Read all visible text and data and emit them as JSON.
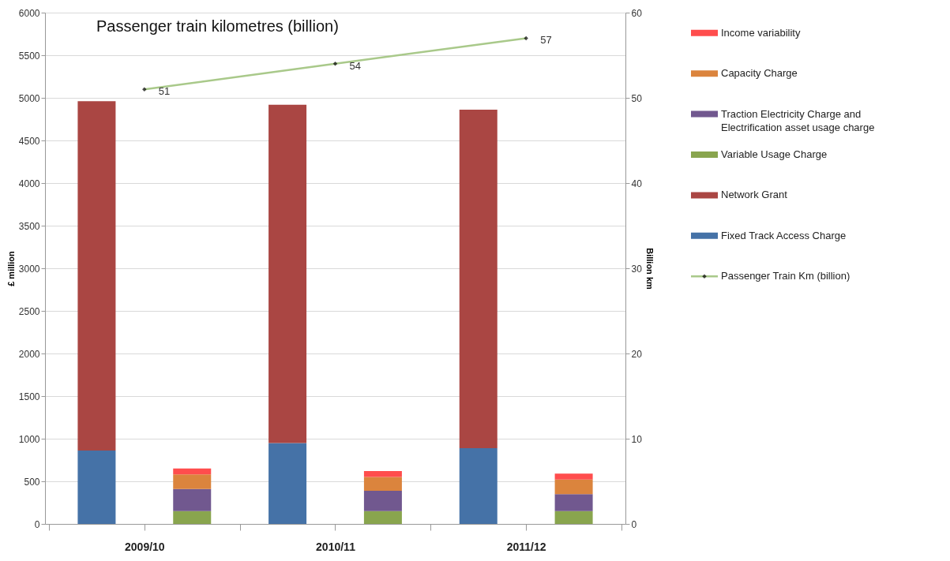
{
  "chart_data": {
    "type": "bar",
    "stacked": true,
    "ylabel": "£ million",
    "y2label": "Billion km",
    "annotations": [
      "Passenger train kilometres (billion)"
    ],
    "categories": [
      "2009/10",
      null,
      "2010/11",
      null,
      "2011/12",
      null
    ],
    "ylim": [
      0,
      6000
    ],
    "yticks": [
      0,
      500,
      1000,
      1500,
      2000,
      2500,
      3000,
      3500,
      4000,
      4500,
      5000,
      5500,
      6000
    ],
    "y2lim": [
      0,
      60
    ],
    "y2ticks": [
      0,
      10,
      20,
      30,
      40,
      50,
      60
    ],
    "grid": "y",
    "legend": "right",
    "series": [
      {
        "name": "Fixed Track Access Charge",
        "color": "#4572a7",
        "values": [
          860,
          null,
          950,
          null,
          890,
          null
        ]
      },
      {
        "name": "Network Grant",
        "color": "#aa4643",
        "values": [
          4100,
          null,
          3970,
          null,
          3970,
          null
        ]
      },
      {
        "name": "Variable Usage Charge",
        "color": "#89a54e",
        "values": [
          null,
          150,
          null,
          150,
          null,
          150
        ]
      },
      {
        "name": "Traction Electricity Charge and Electrification asset usage charge",
        "color": "#71588f",
        "values": [
          null,
          260,
          null,
          240,
          null,
          200
        ]
      },
      {
        "name": "Capacity Charge",
        "color": "#db843d",
        "values": [
          null,
          170,
          null,
          160,
          null,
          170
        ]
      },
      {
        "name": "Income variability",
        "color": "#ff4d4d",
        "values": [
          null,
          70,
          null,
          70,
          null,
          70
        ]
      },
      {
        "name": "Passenger Train Km (billion)",
        "type": "line",
        "axis": "y2",
        "color": "#a9c98a",
        "marker": "diamond",
        "x": [
          "2009/10",
          "2010/11",
          "2011/12"
        ],
        "values": [
          51,
          54,
          57
        ],
        "value_labels": [
          "51",
          "54",
          "57"
        ]
      }
    ]
  }
}
